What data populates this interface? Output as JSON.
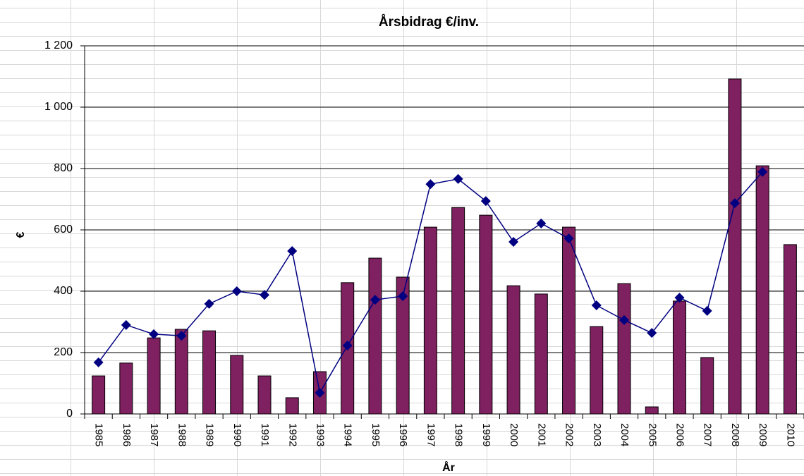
{
  "chart_data": {
    "type": "bar",
    "title": "Årsbidrag €/inv.",
    "y_label": "€",
    "x_label": "År",
    "categories": [
      "1985",
      "1986",
      "1987",
      "1988",
      "1989",
      "1990",
      "1991",
      "1992",
      "1993",
      "1994",
      "1995",
      "1996",
      "1997",
      "1998",
      "1999",
      "2000",
      "2001",
      "2002",
      "2003",
      "2004",
      "2005",
      "2006",
      "2007",
      "2008",
      "2009",
      "2010"
    ],
    "series": [
      {
        "type": "bar",
        "color": "#7f2060",
        "values": [
          124,
          166,
          248,
          276,
          271,
          191,
          124,
          53,
          138,
          428,
          508,
          446,
          609,
          673,
          648,
          418,
          391,
          609,
          285,
          425,
          23,
          368,
          184,
          1092,
          809,
          552
        ]
      },
      {
        "type": "line",
        "color": "#000080",
        "values": [
          168,
          290,
          260,
          255,
          359,
          400,
          388,
          531,
          69,
          223,
          372,
          384,
          749,
          766,
          694,
          561,
          621,
          572,
          354,
          306,
          264,
          379,
          336,
          687,
          789,
          null
        ]
      }
    ],
    "ylim": [
      0,
      1200
    ],
    "yticks": [
      0,
      200,
      400,
      600,
      800,
      {
        "value": 1000,
        "label": "1 000"
      },
      {
        "value": 1200,
        "label": "1 200"
      }
    ],
    "grid": true
  }
}
